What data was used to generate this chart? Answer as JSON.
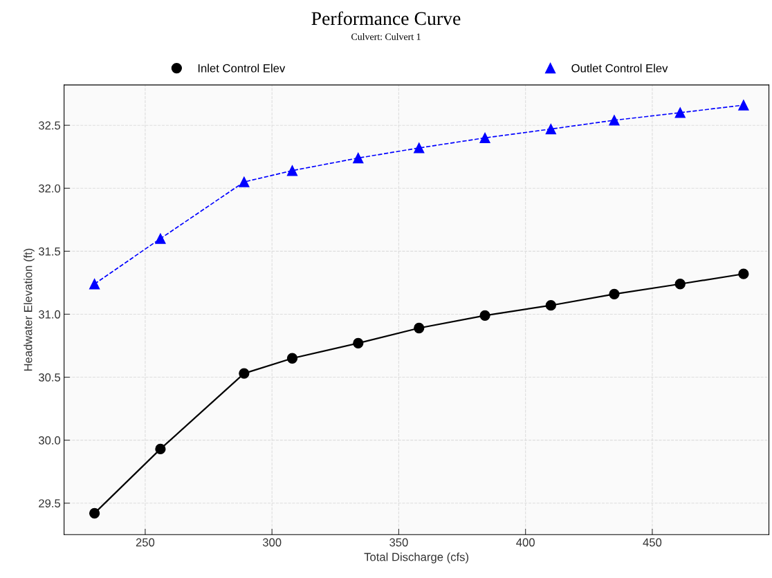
{
  "chart_data": {
    "type": "line",
    "title": "Performance Curve",
    "subtitle": "Culvert: Culvert 1",
    "xlabel": "Total Discharge (cfs)",
    "ylabel": "Headwater Elevation (ft)",
    "x": [
      230,
      256,
      289,
      308,
      334,
      358,
      384,
      410,
      435,
      461,
      486
    ],
    "series": [
      {
        "name": "Inlet Control Elev",
        "color": "#000000",
        "marker": "circle",
        "line_style": "solid",
        "values": [
          29.42,
          29.93,
          30.53,
          30.65,
          30.77,
          30.89,
          30.99,
          31.07,
          31.16,
          31.24,
          31.32
        ]
      },
      {
        "name": "Outlet Control Elev",
        "color": "#0000ff",
        "marker": "triangle",
        "line_style": "dashed",
        "values": [
          31.24,
          31.6,
          32.05,
          32.14,
          32.24,
          32.32,
          32.4,
          32.47,
          32.54,
          32.6,
          32.66
        ]
      }
    ],
    "xlim": [
      218,
      496
    ],
    "xticks": [
      250,
      300,
      350,
      400,
      450
    ],
    "ylim": [
      29.25,
      32.82
    ],
    "yticks": [
      29.5,
      {
        "value": 30,
        "label": "30.0"
      },
      30.5,
      {
        "value": 31,
        "label": "31.0"
      },
      31.5,
      {
        "value": 32,
        "label": "32.0"
      },
      32.5
    ],
    "grid": true,
    "legend": "top"
  }
}
